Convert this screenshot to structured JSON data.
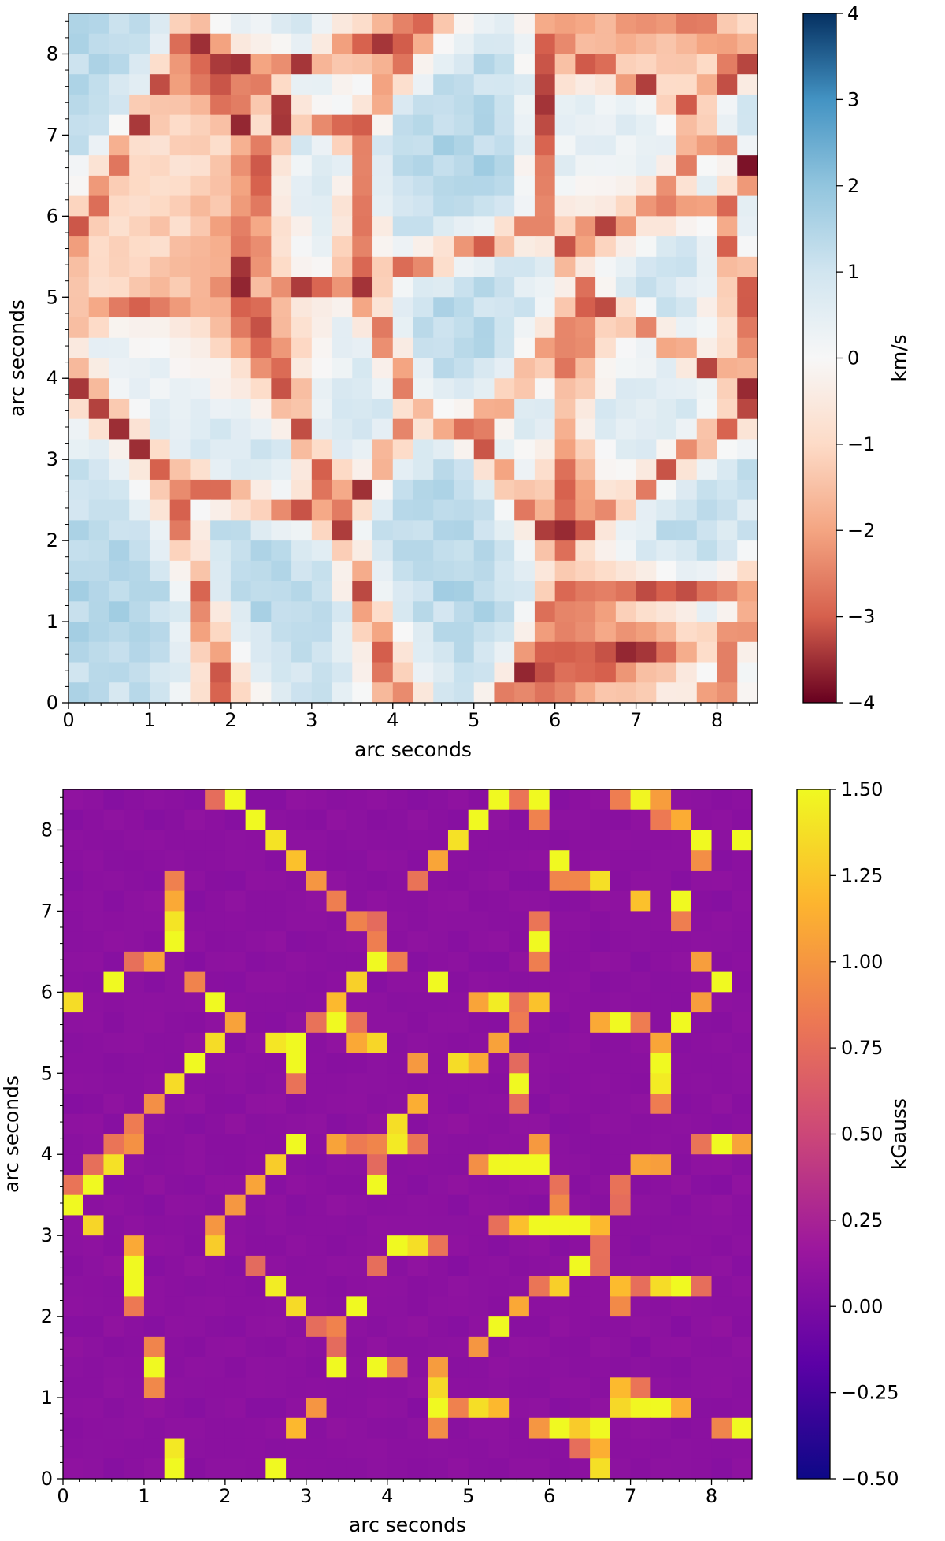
{
  "chart_data": [
    {
      "type": "heatmap",
      "title": "",
      "xlabel": "arc seconds",
      "ylabel": "arc seconds",
      "xlim": [
        0,
        8.5
      ],
      "ylim": [
        0,
        8.5
      ],
      "xticks": [
        "0",
        "1",
        "2",
        "3",
        "4",
        "5",
        "6",
        "7",
        "8"
      ],
      "yticks": [
        "0",
        "1",
        "2",
        "3",
        "4",
        "5",
        "6",
        "7",
        "8"
      ],
      "colorbar": {
        "label": "km/s",
        "range": [
          -4,
          4
        ],
        "ticks": [
          "−4",
          "−3",
          "−2",
          "−1",
          "0",
          "1",
          "2",
          "3",
          "4"
        ],
        "colormap": "RdBu"
      },
      "colormap_colors": [
        "#67001f",
        "#d6604d",
        "#f4a582",
        "#fddbc7",
        "#f7f7f7",
        "#d1e5f0",
        "#92c5de",
        "#4393c3",
        "#053061"
      ]
    },
    {
      "type": "heatmap",
      "title": "",
      "xlabel": "arc seconds",
      "ylabel": "arc seconds",
      "xlim": [
        0,
        8.5
      ],
      "ylim": [
        0,
        8.5
      ],
      "xticks": [
        "0",
        "1",
        "2",
        "3",
        "4",
        "5",
        "6",
        "7",
        "8"
      ],
      "yticks": [
        "0",
        "1",
        "2",
        "3",
        "4",
        "5",
        "6",
        "7",
        "8"
      ],
      "colorbar": {
        "label": "kGauss",
        "range": [
          -0.5,
          1.5
        ],
        "ticks": [
          "−0.50",
          "−0.25",
          "0.00",
          "0.25",
          "0.50",
          "0.75",
          "1.00",
          "1.25",
          "1.50"
        ],
        "colormap": "plasma"
      },
      "colormap_colors": [
        "#0d0887",
        "#5c01a6",
        "#9c179e",
        "#cc4778",
        "#ed7953",
        "#fdb42f",
        "#f0f921"
      ]
    }
  ]
}
